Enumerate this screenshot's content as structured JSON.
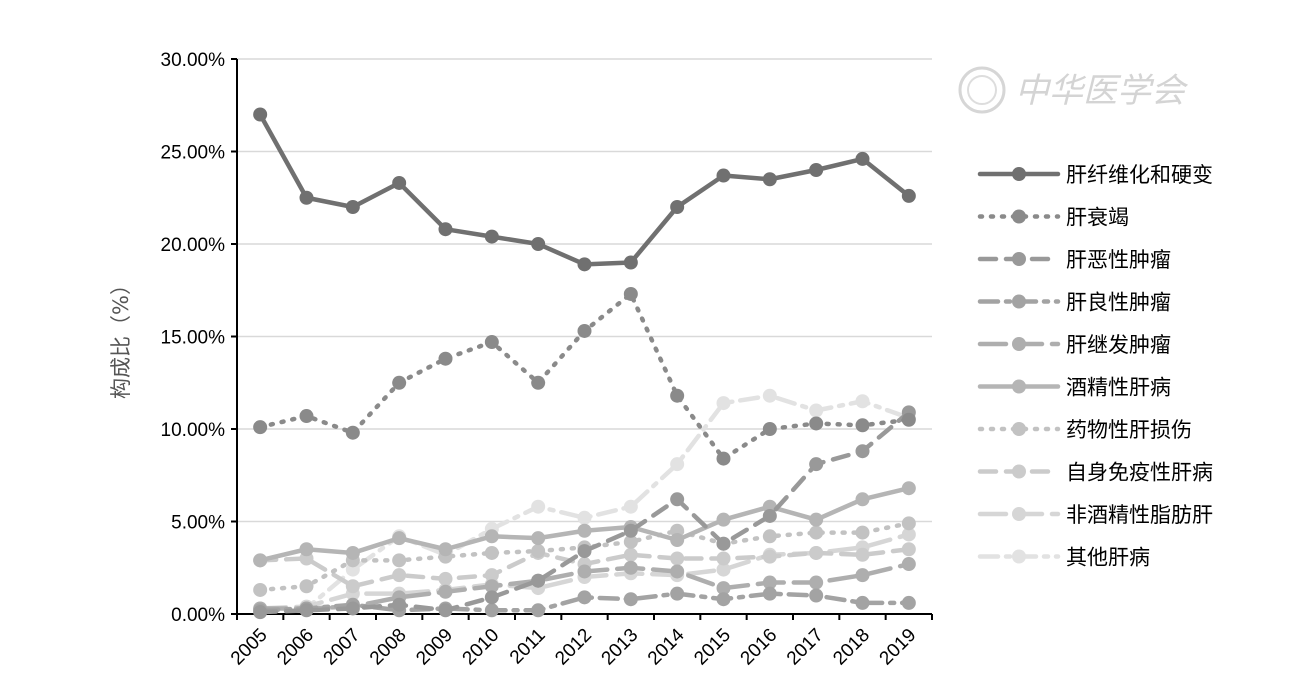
{
  "chart_data": {
    "type": "line",
    "title": "",
    "xlabel": "",
    "ylabel": "构成比（%）",
    "ylim": [
      0,
      30
    ],
    "yticks": [
      "0.00%",
      "5.00%",
      "10.00%",
      "15.00%",
      "20.00%",
      "25.00%",
      "30.00%"
    ],
    "ytick_values": [
      0,
      5,
      10,
      15,
      20,
      25,
      30
    ],
    "categories": [
      "2005",
      "2006",
      "2007",
      "2008",
      "2009",
      "2010",
      "2011",
      "2012",
      "2013",
      "2014",
      "2015",
      "2016",
      "2017",
      "2018",
      "2019"
    ],
    "legend_position": "right",
    "grid": "horizontal",
    "series": [
      {
        "name": "肝纤维化和硬变",
        "color": "#707070",
        "dash": "solid",
        "values": [
          27.0,
          22.5,
          22.0,
          23.3,
          20.8,
          20.4,
          20.0,
          18.9,
          19.0,
          22.0,
          23.7,
          23.5,
          24.0,
          24.6,
          22.6
        ]
      },
      {
        "name": "肝衰竭",
        "color": "#8a8a8a",
        "dash": "dot",
        "values": [
          10.1,
          10.7,
          9.8,
          12.5,
          13.8,
          14.7,
          12.5,
          15.3,
          17.3,
          11.8,
          8.4,
          10.0,
          10.3,
          10.2,
          10.5
        ]
      },
      {
        "name": "肝恶性肿瘤",
        "color": "#999999",
        "dash": "dash",
        "values": [
          0.1,
          0.2,
          0.3,
          0.5,
          0.2,
          0.9,
          1.8,
          3.4,
          4.5,
          6.2,
          3.8,
          5.3,
          8.1,
          8.8,
          10.9
        ]
      },
      {
        "name": "肝良性肿瘤",
        "color": "#a3a3a3",
        "dash": "dashdot",
        "values": [
          0.2,
          0.3,
          0.5,
          0.2,
          0.3,
          0.2,
          0.2,
          0.9,
          0.8,
          1.1,
          0.8,
          1.1,
          1.0,
          0.6,
          0.6
        ]
      },
      {
        "name": "肝继发肿瘤",
        "color": "#aeaeae",
        "dash": "longdash",
        "values": [
          0.3,
          0.3,
          0.4,
          0.9,
          1.2,
          1.5,
          1.8,
          2.3,
          2.5,
          2.3,
          1.4,
          1.7,
          1.7,
          2.1,
          2.7
        ]
      },
      {
        "name": "酒精性肝病",
        "color": "#b5b5b5",
        "dash": "solid",
        "values": [
          2.9,
          3.5,
          3.3,
          4.1,
          3.5,
          4.2,
          4.1,
          4.5,
          4.7,
          4.0,
          5.1,
          5.8,
          5.1,
          6.2,
          6.8
        ]
      },
      {
        "name": "药物性肝损伤",
        "color": "#c2c2c2",
        "dash": "dot",
        "values": [
          1.3,
          1.5,
          2.9,
          2.9,
          3.1,
          3.3,
          3.4,
          3.6,
          3.9,
          4.5,
          3.8,
          4.2,
          4.4,
          4.4,
          4.9
        ]
      },
      {
        "name": "自身免疫性肝病",
        "color": "#cbcbcb",
        "dash": "dash",
        "values": [
          2.9,
          3.0,
          1.5,
          2.1,
          1.9,
          2.1,
          3.3,
          2.7,
          3.2,
          3.0,
          3.0,
          3.1,
          3.3,
          3.2,
          3.5
        ]
      },
      {
        "name": "非酒精性脂肪肝",
        "color": "#d6d6d6",
        "dash": "longdash",
        "values": [
          0.3,
          0.4,
          1.1,
          1.1,
          1.3,
          1.6,
          1.4,
          2.0,
          2.2,
          2.1,
          2.4,
          3.2,
          3.3,
          3.6,
          4.3
        ]
      },
      {
        "name": "其他肝病",
        "color": "#e2e2e2",
        "dash": "dashdot",
        "values": [
          0.2,
          0.3,
          2.4,
          4.2,
          3.2,
          4.6,
          5.8,
          5.2,
          5.8,
          8.1,
          11.4,
          11.8,
          11.0,
          11.5,
          10.6
        ]
      }
    ]
  }
}
